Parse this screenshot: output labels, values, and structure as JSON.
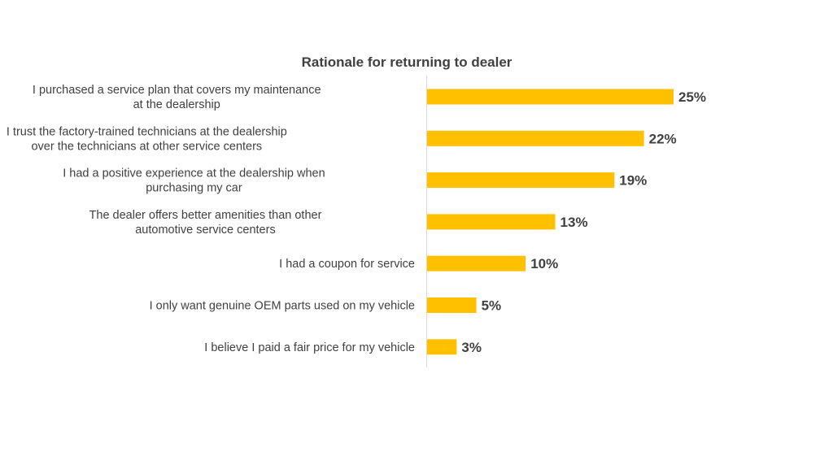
{
  "chart_data": {
    "type": "bar",
    "orientation": "horizontal",
    "title": "Rationale for returning to dealer",
    "categories": [
      [
        "I purchased a service plan that covers my maintenance",
        "at the dealership"
      ],
      [
        "I trust the factory-trained technicians at the dealership",
        "over the technicians at other service centers"
      ],
      [
        "I had a positive experience at the dealership when",
        "purchasing my car"
      ],
      [
        "The dealer offers better amenities than other",
        "automotive service centers"
      ],
      [
        "I had a coupon for service"
      ],
      [
        "I only want genuine OEM parts used on my vehicle"
      ],
      [
        "I believe I paid a fair price for my vehicle"
      ]
    ],
    "values": [
      25,
      22,
      19,
      13,
      10,
      5,
      3
    ],
    "value_labels": [
      "25%",
      "22%",
      "19%",
      "13%",
      "10%",
      "5%",
      "3%"
    ],
    "xlim": [
      0,
      25
    ],
    "grid": false,
    "legend": "none",
    "bar_color": "#FFC000",
    "axis_color": "#D9D9D9",
    "text_color": "#404040"
  }
}
